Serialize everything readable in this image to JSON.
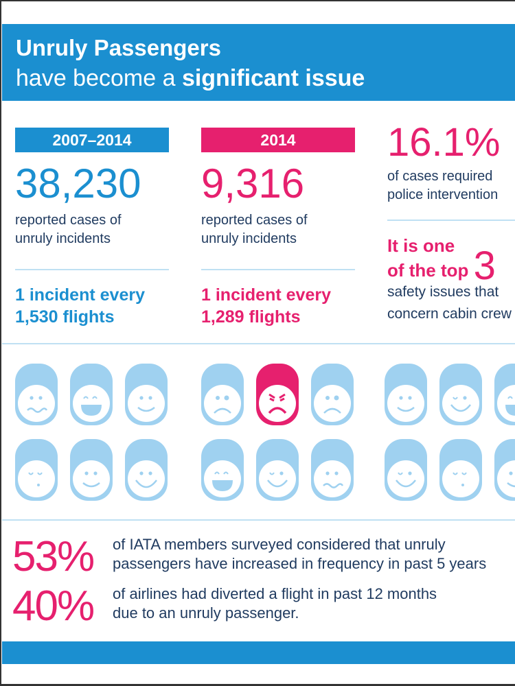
{
  "colors": {
    "blue": "#1b8fd0",
    "pink": "#e6206e",
    "icon": "#9fd1f0",
    "text": "#1f3a5f"
  },
  "header": {
    "title": "Unruly Passengers",
    "subtitle_start": "have become a ",
    "subtitle_bold": "significant issue"
  },
  "col1": {
    "tag": "2007–2014",
    "number": "38,230",
    "desc1": "reported cases of",
    "desc2": "unruly incidents",
    "inc1": "1 incident every",
    "inc2": "1,530  flights"
  },
  "col2": {
    "tag": "2014",
    "number": "9,316",
    "desc1": "reported cases of",
    "desc2": "unruly incidents",
    "inc1": "1 incident every",
    "inc2": "1,289  flights"
  },
  "col3": {
    "number": "16.1%",
    "desc1": "of cases required",
    "desc2": "police intervention",
    "top1": "It is one",
    "top2": "of the top",
    "top_num": "3",
    "desc3": "safety issues that",
    "desc4": "concern cabin crew"
  },
  "faces": [
    [
      "wavy",
      "laugh",
      "smile",
      "frown",
      "angry",
      "frown",
      "smile",
      "winksmile",
      "laugh"
    ],
    [
      "sleepy",
      "smile",
      "bigsmile",
      "laugh",
      "winksmile",
      "wavy",
      "winksmile",
      "sleepy",
      "smile"
    ]
  ],
  "highlighted_face": "angry",
  "stats": [
    {
      "pct": "53%",
      "line1": "of IATA members surveyed considered that unruly",
      "line2": "passengers have increased in frequency in past 5 years"
    },
    {
      "pct": "40%",
      "line1": "of airlines had diverted a flight in past 12 months",
      "line2": "due to an unruly passenger."
    }
  ]
}
